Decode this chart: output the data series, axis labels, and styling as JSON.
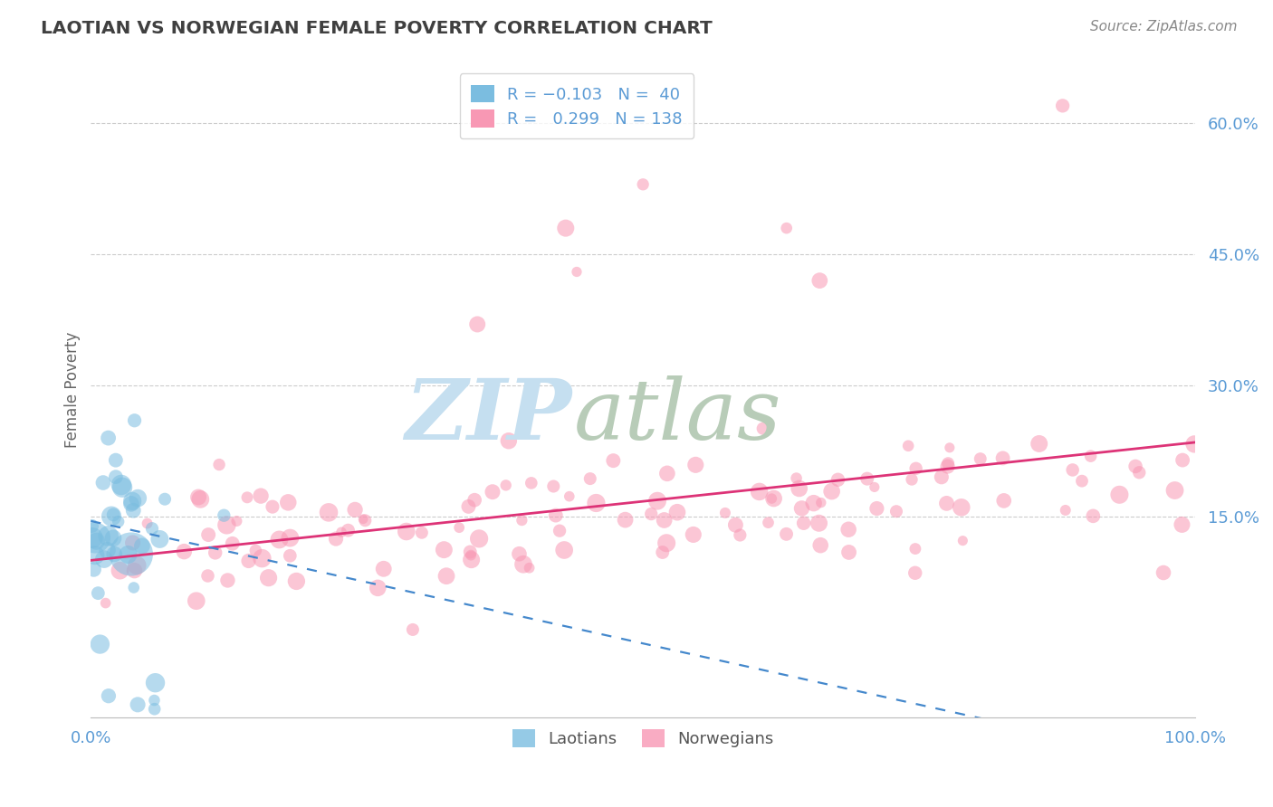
{
  "title": "LAOTIAN VS NORWEGIAN FEMALE POVERTY CORRELATION CHART",
  "source": "Source: ZipAtlas.com",
  "ylabel": "Female Poverty",
  "y_ticks": [
    0.15,
    0.3,
    0.45,
    0.6
  ],
  "y_tick_labels": [
    "15.0%",
    "30.0%",
    "45.0%",
    "60.0%"
  ],
  "x_range": [
    0.0,
    1.0
  ],
  "y_range": [
    -0.08,
    0.67
  ],
  "laotian_R": -0.103,
  "laotian_N": 40,
  "norwegian_R": 0.299,
  "norwegian_N": 138,
  "laotian_color": "#7bbde0",
  "norwegian_color": "#f898b4",
  "trend_laotian_color": "#4488cc",
  "trend_norwegian_color": "#dd3377",
  "background_color": "#ffffff",
  "grid_color": "#cccccc",
  "title_color": "#404040",
  "axis_label_color": "#5b9bd5",
  "legend_label_1": "Laotians",
  "legend_label_2": "Norwegians",
  "zip_color": "#c8ddf0",
  "atlas_color": "#b8d4c0"
}
